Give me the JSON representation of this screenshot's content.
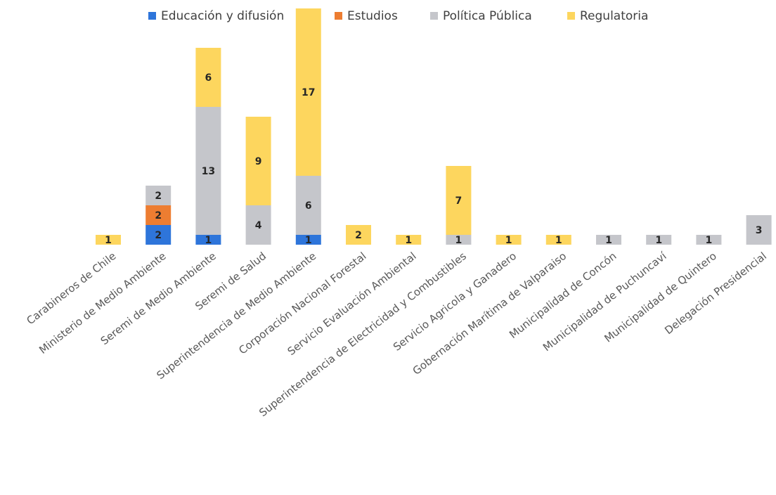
{
  "chart_data": {
    "type": "bar",
    "stacked": true,
    "title": "",
    "xlabel": "",
    "ylabel": "",
    "ylim": [
      0,
      27
    ],
    "grid": false,
    "legend_position": "top-center",
    "categories": [
      "Carabineros de Chile",
      "Ministerio de Medio Ambiente",
      "Seremi de Medio Ambiente",
      "Seremi de Salud",
      "Superintendencia de Medio Ambiente",
      "Corporación Nacional Forestal",
      "Servicio Evaluación Ambiental",
      "Superintendencia de Electricidad y Combustibles",
      "Servicio Agricola y Ganadero",
      "Gobernación Marítima de Valparaiso",
      "Municipalidad de Concón",
      "Municipalidad de Puchuncaví",
      "Municipalidad de Quintero",
      "Delegación Presidencial"
    ],
    "series": [
      {
        "name": "Educación y difusión",
        "color": "#2E75DA",
        "values": [
          0,
          2,
          1,
          0,
          1,
          0,
          0,
          0,
          0,
          0,
          0,
          0,
          0,
          0
        ]
      },
      {
        "name": "Estudios",
        "color": "#ED7D31",
        "values": [
          0,
          2,
          0,
          0,
          0,
          0,
          0,
          0,
          0,
          0,
          0,
          0,
          0,
          0
        ]
      },
      {
        "name": "Política Pública",
        "color": "#C5C6CB",
        "values": [
          0,
          2,
          13,
          4,
          6,
          0,
          0,
          1,
          0,
          0,
          1,
          1,
          1,
          3
        ]
      },
      {
        "name": "Regulatoria",
        "color": "#FDD65E",
        "values": [
          1,
          0,
          6,
          9,
          17,
          2,
          1,
          7,
          1,
          1,
          0,
          0,
          0,
          0
        ]
      }
    ]
  }
}
